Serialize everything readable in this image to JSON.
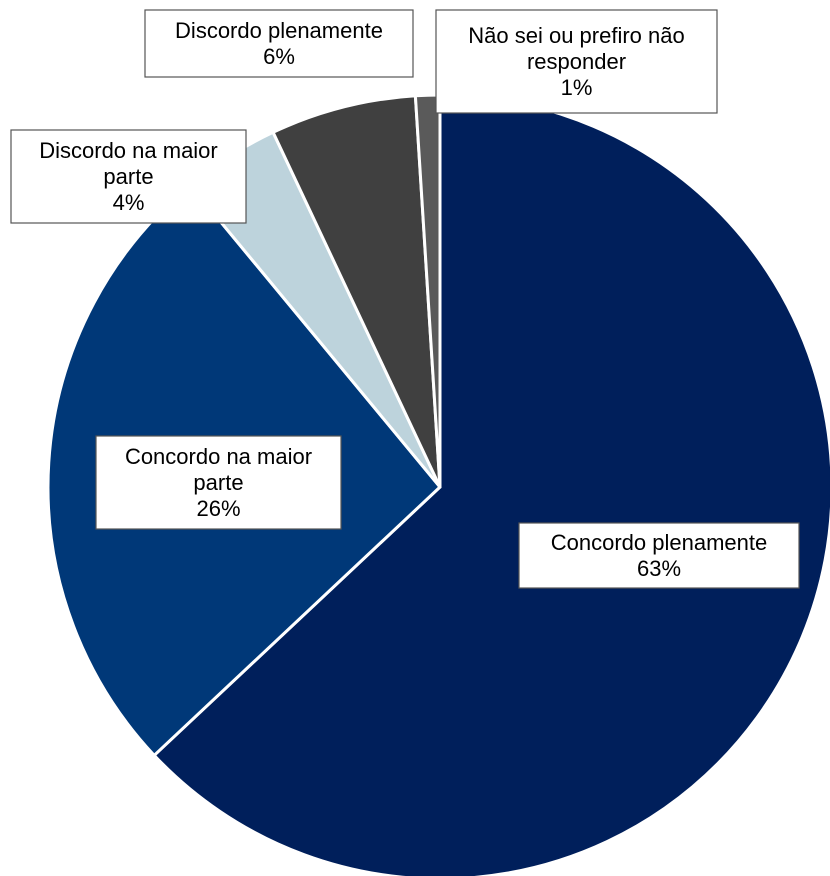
{
  "chart_data": {
    "type": "pie",
    "slices": [
      {
        "label_lines": [
          "Concordo plenamente"
        ],
        "value": 63,
        "value_label": "63%",
        "color": "#001F5B"
      },
      {
        "label_lines": [
          "Concordo na maior",
          "parte"
        ],
        "value": 26,
        "value_label": "26%",
        "color": "#003878"
      },
      {
        "label_lines": [
          "Discordo na maior",
          "parte"
        ],
        "value": 4,
        "value_label": "4%",
        "color": "#BDD3DC"
      },
      {
        "label_lines": [
          "Discordo plenamente"
        ],
        "value": 6,
        "value_label": "6%",
        "color": "#404040"
      },
      {
        "label_lines": [
          "Não sei ou prefiro não",
          "responder"
        ],
        "value": 1,
        "value_label": "1%",
        "color": "#5A5A5A"
      }
    ],
    "start_angle_deg": 0,
    "direction": "clockwise",
    "legend": "none",
    "data_labels": "boxed"
  }
}
